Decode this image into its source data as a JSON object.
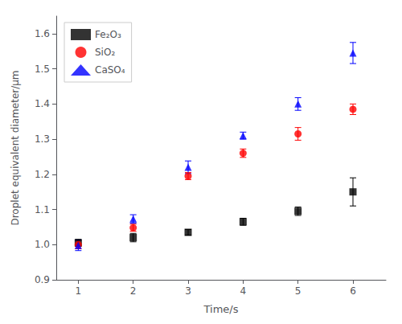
{
  "chart_data": {
    "type": "scatter",
    "xlabel": "Time/s",
    "ylabel": "Droplet equivalent diameter/μm",
    "x": [
      1,
      2,
      3,
      4,
      5,
      6
    ],
    "series": [
      {
        "name": "Fe₂O₃",
        "color": "#000000",
        "marker": "square",
        "values": [
          1.005,
          1.02,
          1.035,
          1.065,
          1.095,
          1.15
        ],
        "yerr": [
          0.01,
          0.012,
          0.008,
          0.01,
          0.012,
          0.04
        ]
      },
      {
        "name": "SiO₂",
        "color": "#ff0000",
        "marker": "circle",
        "values": [
          1.0,
          1.048,
          1.195,
          1.26,
          1.315,
          1.385
        ],
        "yerr": [
          0.012,
          0.01,
          0.01,
          0.012,
          0.018,
          0.015
        ]
      },
      {
        "name": "CaSO₄",
        "color": "#0000ff",
        "marker": "triangle",
        "values": [
          0.998,
          1.073,
          1.22,
          1.31,
          1.4,
          1.545
        ],
        "yerr": [
          0.015,
          0.012,
          0.018,
          0.01,
          0.018,
          0.03
        ]
      }
    ],
    "xlim": [
      0.6,
      6.6
    ],
    "xticks": [
      1,
      2,
      3,
      4,
      5,
      6
    ],
    "ylim": [
      0.9,
      1.65
    ],
    "yticks": [
      0.9,
      {
        "value": 1.0,
        "label": "1.0"
      },
      1.1,
      1.2,
      1.3,
      1.4,
      1.5,
      1.6
    ],
    "legend": "upper left",
    "grid": false
  }
}
